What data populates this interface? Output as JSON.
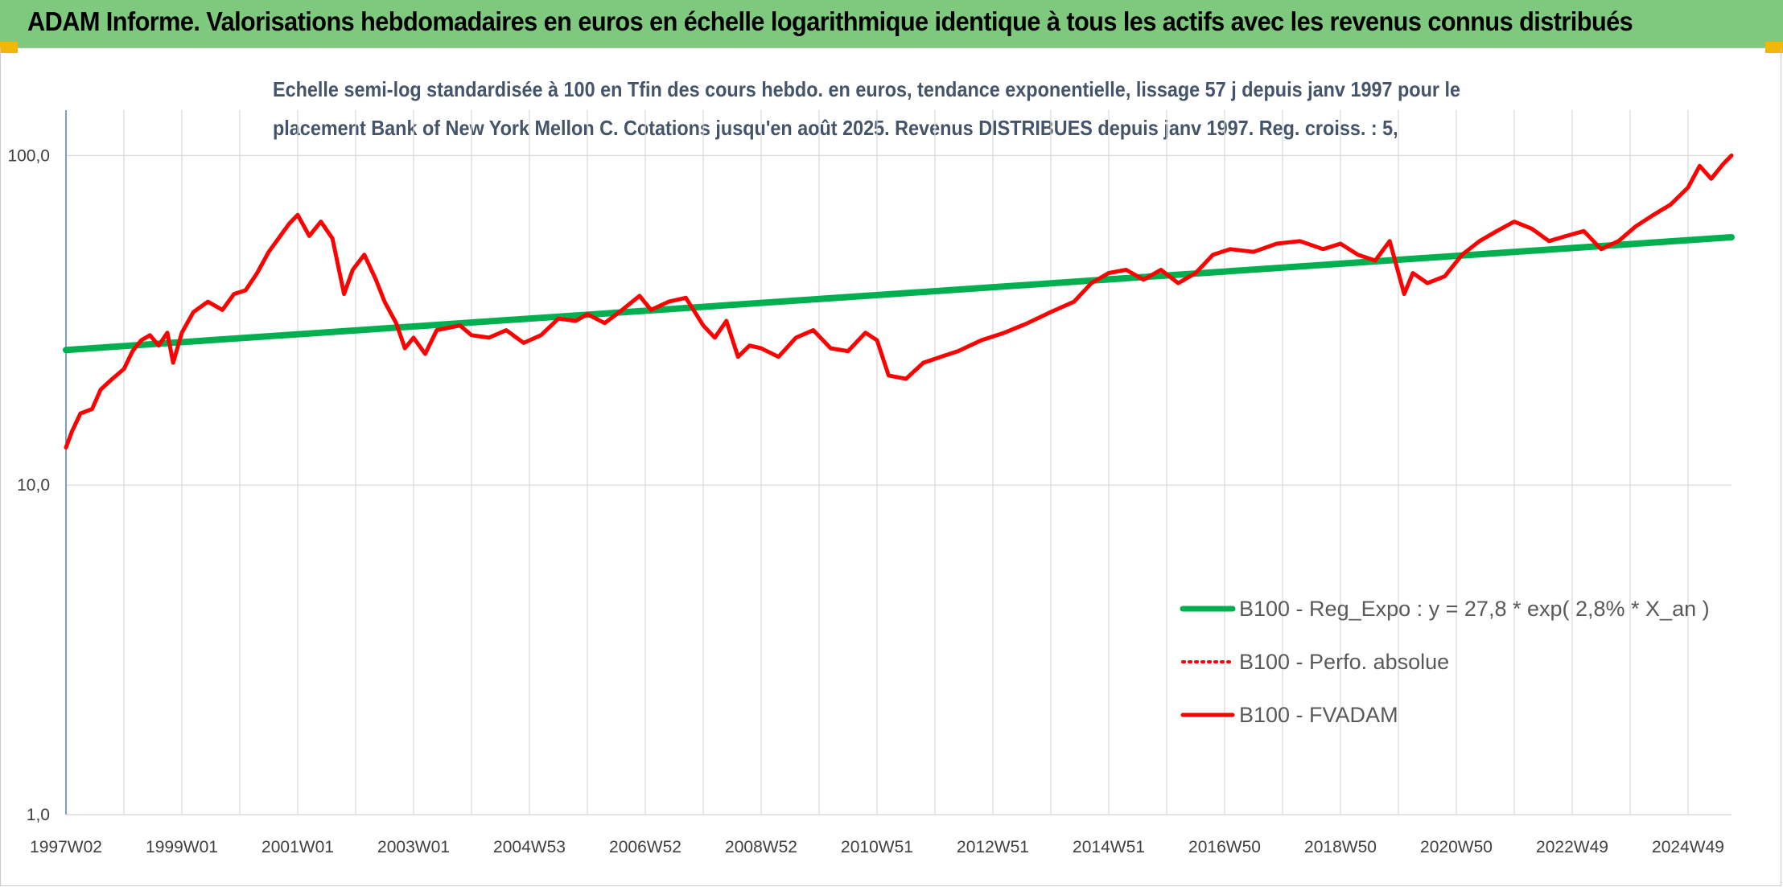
{
  "header": {
    "title": "ADAM Informe. Valorisations hebdomadaires en euros en échelle logarithmique identique à tous les actifs avec les revenus connus distribués"
  },
  "colors": {
    "header_bg": "#7fc97f",
    "accent_corner": "#f2b807",
    "regression": "#00b050",
    "fvadam": "#ff0000",
    "perf": "#ff0000",
    "subtitle": "#44546a"
  },
  "chart_data": {
    "type": "line",
    "title_line1": "Echelle semi-log standardisée à 100 en Tfin des cours hebdo. en euros, tendance exponentielle, lissage 57 j depuis janv 1997 pour le",
    "title_line2": "placement Bank of New York Mellon C. Cotations jusqu'en août 2025. Revenus DISTRIBUES depuis janv 1997. Reg. croiss. : 5,",
    "y_scale": "log",
    "ylim": [
      1,
      200
    ],
    "y_ticks": [
      {
        "value": 1,
        "label": "1,0"
      },
      {
        "value": 10,
        "label": "10,0"
      },
      {
        "value": 100,
        "label": "100,0"
      }
    ],
    "x_range": [
      1997.0,
      2025.75
    ],
    "x_ticks": [
      {
        "value": 1997.0,
        "label": "1997W02"
      },
      {
        "value": 1999.0,
        "label": "1999W01"
      },
      {
        "value": 2001.0,
        "label": "2001W01"
      },
      {
        "value": 2003.0,
        "label": "2003W01"
      },
      {
        "value": 2005.0,
        "label": "2004W53"
      },
      {
        "value": 2007.0,
        "label": "2006W52"
      },
      {
        "value": 2009.0,
        "label": "2008W52"
      },
      {
        "value": 2011.0,
        "label": "2010W51"
      },
      {
        "value": 2013.0,
        "label": "2012W51"
      },
      {
        "value": 2015.0,
        "label": "2014W51"
      },
      {
        "value": 2017.0,
        "label": "2016W50"
      },
      {
        "value": 2019.0,
        "label": "2018W50"
      },
      {
        "value": 2021.0,
        "label": "2020W50"
      },
      {
        "value": 2023.0,
        "label": "2022W49"
      },
      {
        "value": 2025.0,
        "label": "2024W49"
      }
    ],
    "x_grid": true,
    "y_grid": true,
    "legend_position": "right",
    "series": [
      {
        "name": "B100 - Reg_Expo : y = 27,8 * exp( 2,8% *  X_an )",
        "color": "#00b050",
        "style": "solid",
        "x": [
          1997.0,
          2025.75
        ],
        "values": [
          25.7,
          56.5
        ]
      },
      {
        "name": "B100 - Perfo. absolue",
        "color": "#ff0000",
        "style": "dotted",
        "x": [],
        "values": []
      },
      {
        "name": "B100 - FVADAM",
        "color": "#ff0000",
        "style": "solid",
        "x": [
          1997.0,
          1997.1,
          1997.25,
          1997.45,
          1997.6,
          1997.8,
          1998.0,
          1998.15,
          1998.3,
          1998.45,
          1998.6,
          1998.75,
          1998.85,
          1999.0,
          1999.2,
          1999.45,
          1999.7,
          1999.9,
          2000.1,
          2000.3,
          2000.5,
          2000.7,
          2000.85,
          2001.0,
          2001.2,
          2001.4,
          2001.6,
          2001.8,
          2001.95,
          2002.15,
          2002.35,
          2002.5,
          2002.7,
          2002.85,
          2003.0,
          2003.2,
          2003.4,
          2003.6,
          2003.8,
          2004.0,
          2004.3,
          2004.6,
          2004.9,
          2005.2,
          2005.5,
          2005.8,
          2006.0,
          2006.3,
          2006.6,
          2006.9,
          2007.1,
          2007.4,
          2007.7,
          2008.0,
          2008.2,
          2008.4,
          2008.6,
          2008.8,
          2009.0,
          2009.3,
          2009.6,
          2009.9,
          2010.2,
          2010.5,
          2010.8,
          2011.0,
          2011.2,
          2011.5,
          2011.8,
          2012.1,
          2012.4,
          2012.8,
          2013.2,
          2013.6,
          2014.0,
          2014.4,
          2014.7,
          2015.0,
          2015.3,
          2015.6,
          2015.9,
          2016.2,
          2016.5,
          2016.8,
          2017.1,
          2017.5,
          2017.9,
          2018.3,
          2018.7,
          2019.0,
          2019.3,
          2019.6,
          2019.85,
          2020.1,
          2020.25,
          2020.5,
          2020.8,
          2021.1,
          2021.4,
          2021.7,
          2022.0,
          2022.3,
          2022.6,
          2022.9,
          2023.2,
          2023.5,
          2023.8,
          2024.1,
          2024.4,
          2024.7,
          2025.0,
          2025.2,
          2025.4,
          2025.6,
          2025.75
        ],
        "values": [
          13.0,
          14.5,
          16.5,
          17.0,
          19.5,
          21.0,
          22.5,
          25.5,
          27.5,
          28.5,
          26.5,
          29.0,
          23.5,
          29.0,
          33.5,
          36.0,
          34.0,
          38.0,
          39.0,
          44.0,
          51.0,
          57.0,
          62.0,
          66.0,
          57.0,
          63.0,
          56.0,
          38.0,
          45.0,
          50.0,
          42.0,
          36.0,
          31.0,
          26.0,
          28.0,
          25.0,
          29.5,
          30.0,
          30.5,
          28.5,
          28.0,
          29.5,
          27.0,
          28.5,
          32.0,
          31.5,
          33.0,
          31.0,
          34.0,
          37.5,
          34.0,
          36.0,
          37.0,
          30.5,
          28.0,
          31.5,
          24.5,
          26.5,
          26.0,
          24.5,
          28.0,
          29.5,
          26.0,
          25.5,
          29.0,
          27.5,
          21.5,
          21.0,
          23.5,
          24.5,
          25.5,
          27.5,
          29.0,
          31.0,
          33.5,
          36.0,
          41.0,
          44.0,
          45.0,
          42.0,
          45.0,
          41.0,
          44.0,
          50.0,
          52.0,
          51.0,
          54.0,
          55.0,
          52.0,
          54.0,
          50.0,
          48.0,
          55.0,
          38.0,
          44.0,
          41.0,
          43.0,
          50.0,
          55.0,
          59.0,
          63.0,
          60.0,
          55.0,
          57.0,
          59.0,
          52.0,
          55.0,
          61.0,
          66.0,
          71.0,
          80.0,
          93.0,
          85.0,
          94.0,
          100.0
        ]
      }
    ]
  }
}
